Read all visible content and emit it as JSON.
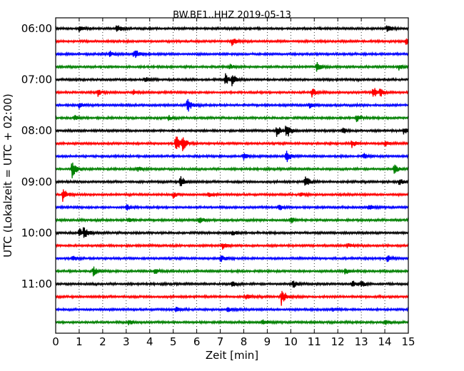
{
  "chart_data": {
    "type": "line",
    "title": "BW.BE1..HHZ 2019-05-13",
    "xlabel": "Zeit  [min]",
    "ylabel": "UTC (Lokalzeit = UTC + 02:00)",
    "xlim": [
      0,
      15
    ],
    "x_ticks": [
      "0",
      "1",
      "2",
      "3",
      "4",
      "5",
      "6",
      "7",
      "8",
      "9",
      "10",
      "11",
      "12",
      "13",
      "14",
      "15"
    ],
    "y_ticks": [
      "06:00",
      "07:00",
      "08:00",
      "09:00",
      "10:00",
      "11:00"
    ],
    "grid": "vertical dotted lines at every minute",
    "trace_colors": [
      "#000000",
      "#ff0000",
      "#0000ff",
      "#008000"
    ],
    "traces": [
      {
        "label": "06:00",
        "events": [
          {
            "t": 1.0,
            "a": 0.4
          },
          {
            "t": 2.6,
            "a": 0.6
          },
          {
            "t": 14.1,
            "a": 0.7
          }
        ]
      },
      {
        "label": "06:15",
        "events": [
          {
            "t": 7.5,
            "a": 0.6
          },
          {
            "t": 14.9,
            "a": 0.5
          }
        ]
      },
      {
        "label": "06:30",
        "events": [
          {
            "t": 2.3,
            "a": 0.4
          },
          {
            "t": 3.3,
            "a": 0.4
          },
          {
            "t": 3.4,
            "a": 0.5
          }
        ]
      },
      {
        "label": "06:45",
        "events": [
          {
            "t": 7.4,
            "a": 0.5
          },
          {
            "t": 11.1,
            "a": 0.7
          },
          {
            "t": 14.6,
            "a": 0.4
          }
        ]
      },
      {
        "label": "07:00",
        "events": [
          {
            "t": 7.2,
            "a": 1.0
          },
          {
            "t": 7.5,
            "a": 0.9
          },
          {
            "t": 3.8,
            "a": 0.4
          }
        ]
      },
      {
        "label": "07:15",
        "events": [
          {
            "t": 1.8,
            "a": 0.5
          },
          {
            "t": 3.3,
            "a": 0.5
          },
          {
            "t": 10.9,
            "a": 0.8
          },
          {
            "t": 13.5,
            "a": 1.0
          },
          {
            "t": 13.8,
            "a": 0.6
          }
        ]
      },
      {
        "label": "07:30",
        "events": [
          {
            "t": 5.6,
            "a": 1.2
          },
          {
            "t": 1.0,
            "a": 0.5
          },
          {
            "t": 10.8,
            "a": 0.5
          }
        ]
      },
      {
        "label": "07:45",
        "events": [
          {
            "t": 0.8,
            "a": 0.4
          },
          {
            "t": 4.8,
            "a": 0.4
          },
          {
            "t": 12.8,
            "a": 0.7
          }
        ]
      },
      {
        "label": "08:00",
        "events": [
          {
            "t": 9.8,
            "a": 1.6
          },
          {
            "t": 9.4,
            "a": 0.8
          },
          {
            "t": 12.2,
            "a": 0.5
          },
          {
            "t": 14.8,
            "a": 0.5
          }
        ]
      },
      {
        "label": "08:15",
        "events": [
          {
            "t": 5.1,
            "a": 1.5
          },
          {
            "t": 5.4,
            "a": 1.0
          },
          {
            "t": 12.6,
            "a": 0.6
          },
          {
            "t": 14.0,
            "a": 0.5
          }
        ]
      },
      {
        "label": "08:30",
        "events": [
          {
            "t": 9.8,
            "a": 1.1
          },
          {
            "t": 8.0,
            "a": 0.5
          },
          {
            "t": 13.1,
            "a": 0.4
          }
        ]
      },
      {
        "label": "08:45",
        "events": [
          {
            "t": 0.7,
            "a": 1.4
          },
          {
            "t": 14.4,
            "a": 0.7
          },
          {
            "t": 3.5,
            "a": 0.4
          }
        ]
      },
      {
        "label": "09:00",
        "events": [
          {
            "t": 5.3,
            "a": 1.0
          },
          {
            "t": 10.6,
            "a": 1.0
          },
          {
            "t": 14.6,
            "a": 0.5
          }
        ]
      },
      {
        "label": "09:15",
        "events": [
          {
            "t": 0.3,
            "a": 1.3
          },
          {
            "t": 5.0,
            "a": 0.5
          },
          {
            "t": 6.5,
            "a": 0.4
          },
          {
            "t": 10.4,
            "a": 0.4
          }
        ]
      },
      {
        "label": "09:30",
        "events": [
          {
            "t": 3.0,
            "a": 0.5
          },
          {
            "t": 9.5,
            "a": 0.6
          },
          {
            "t": 13.3,
            "a": 0.4
          }
        ]
      },
      {
        "label": "09:45",
        "events": [
          {
            "t": 3.1,
            "a": 0.4
          },
          {
            "t": 6.1,
            "a": 0.5
          },
          {
            "t": 10.0,
            "a": 0.5
          }
        ]
      },
      {
        "label": "10:00",
        "events": [
          {
            "t": 1.2,
            "a": 1.0
          },
          {
            "t": 1.0,
            "a": 0.7
          },
          {
            "t": 7.5,
            "a": 0.5
          }
        ]
      },
      {
        "label": "10:15",
        "events": [
          {
            "t": 7.1,
            "a": 0.5
          },
          {
            "t": 12.4,
            "a": 0.4
          }
        ]
      },
      {
        "label": "10:30",
        "events": [
          {
            "t": 0.7,
            "a": 0.4
          },
          {
            "t": 7.0,
            "a": 0.6
          },
          {
            "t": 14.1,
            "a": 0.5
          }
        ]
      },
      {
        "label": "10:45",
        "events": [
          {
            "t": 1.6,
            "a": 0.7
          },
          {
            "t": 4.2,
            "a": 0.4
          },
          {
            "t": 12.3,
            "a": 0.5
          }
        ]
      },
      {
        "label": "11:00",
        "events": [
          {
            "t": 7.5,
            "a": 0.5
          },
          {
            "t": 10.1,
            "a": 0.6
          },
          {
            "t": 12.6,
            "a": 0.6
          },
          {
            "t": 13.0,
            "a": 0.5
          }
        ]
      },
      {
        "label": "11:15",
        "events": [
          {
            "t": 9.6,
            "a": 1.4
          },
          {
            "t": 8.1,
            "a": 0.4
          }
        ]
      },
      {
        "label": "11:30",
        "events": [
          {
            "t": 5.1,
            "a": 0.4
          },
          {
            "t": 7.3,
            "a": 0.4
          },
          {
            "t": 11.8,
            "a": 0.3
          }
        ]
      },
      {
        "label": "11:45",
        "events": [
          {
            "t": 3.1,
            "a": 0.4
          },
          {
            "t": 8.8,
            "a": 0.4
          },
          {
            "t": 14.0,
            "a": 0.5
          }
        ]
      }
    ]
  }
}
